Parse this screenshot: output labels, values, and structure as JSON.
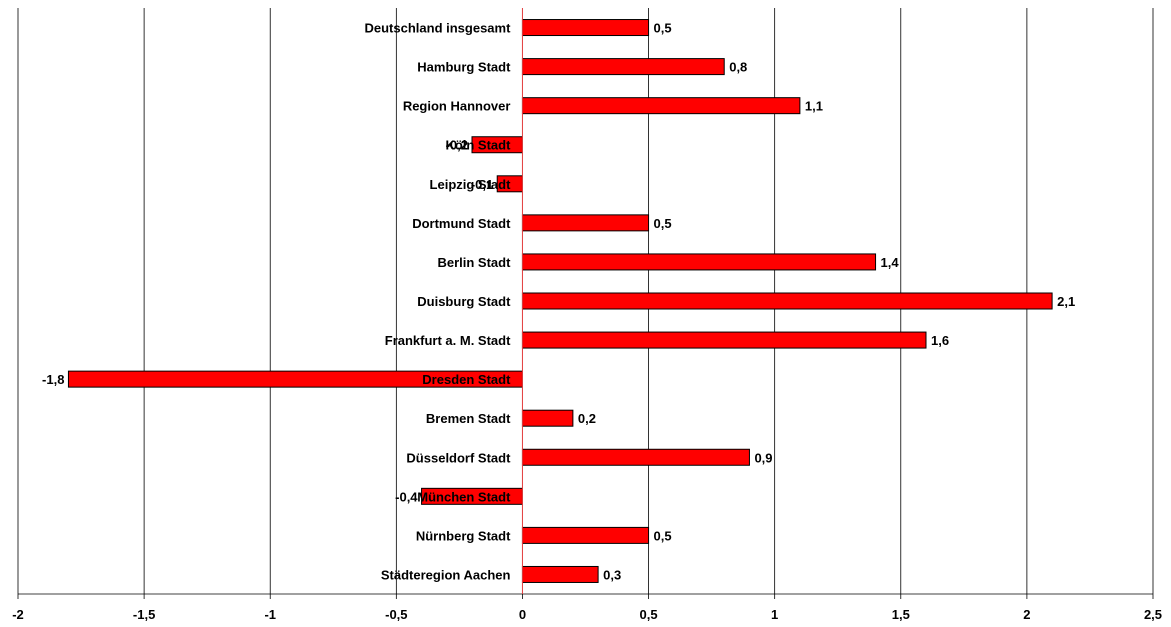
{
  "chart_data": {
    "type": "bar",
    "orientation": "horizontal",
    "title": "",
    "xlabel": "",
    "ylabel": "",
    "xlim": [
      -2,
      2.5
    ],
    "x_ticks": [
      -2,
      -1.5,
      -1,
      -0.5,
      0,
      0.5,
      1,
      1.5,
      2,
      2.5
    ],
    "x_tick_labels": [
      "-2",
      "-1,5",
      "-1",
      "-0,5",
      "0",
      "0,5",
      "1",
      "1,5",
      "2",
      "2,5"
    ],
    "grid": true,
    "legend": "none",
    "categories": [
      "Deutschland insgesamt",
      "Hamburg Stadt",
      "Region Hannover",
      "Köln Stadt",
      "Leipzig Stadt",
      "Dortmund Stadt",
      "Berlin Stadt",
      "Duisburg Stadt",
      "Frankfurt a. M. Stadt",
      "Dresden Stadt",
      "Bremen Stadt",
      "Düsseldorf Stadt",
      "München Stadt",
      "Nürnberg Stadt",
      "Städteregion Aachen"
    ],
    "values": [
      0.5,
      0.8,
      1.1,
      -0.2,
      -0.1,
      0.5,
      1.4,
      2.1,
      1.6,
      -1.8,
      0.2,
      0.9,
      -0.4,
      0.5,
      0.3
    ],
    "value_labels": [
      "0,5",
      "0,8",
      "1,1",
      "-0,2",
      "-0,1",
      "0,5",
      "1,4",
      "2,1",
      "1,6",
      "-1,8",
      "0,2",
      "0,9",
      "-0,4",
      "0,5",
      "0,3"
    ],
    "colors": {
      "bar_fill": "#ff0000",
      "bar_stroke": "#000000",
      "grid": "#000000",
      "zero_line": "#e33b3b"
    }
  }
}
